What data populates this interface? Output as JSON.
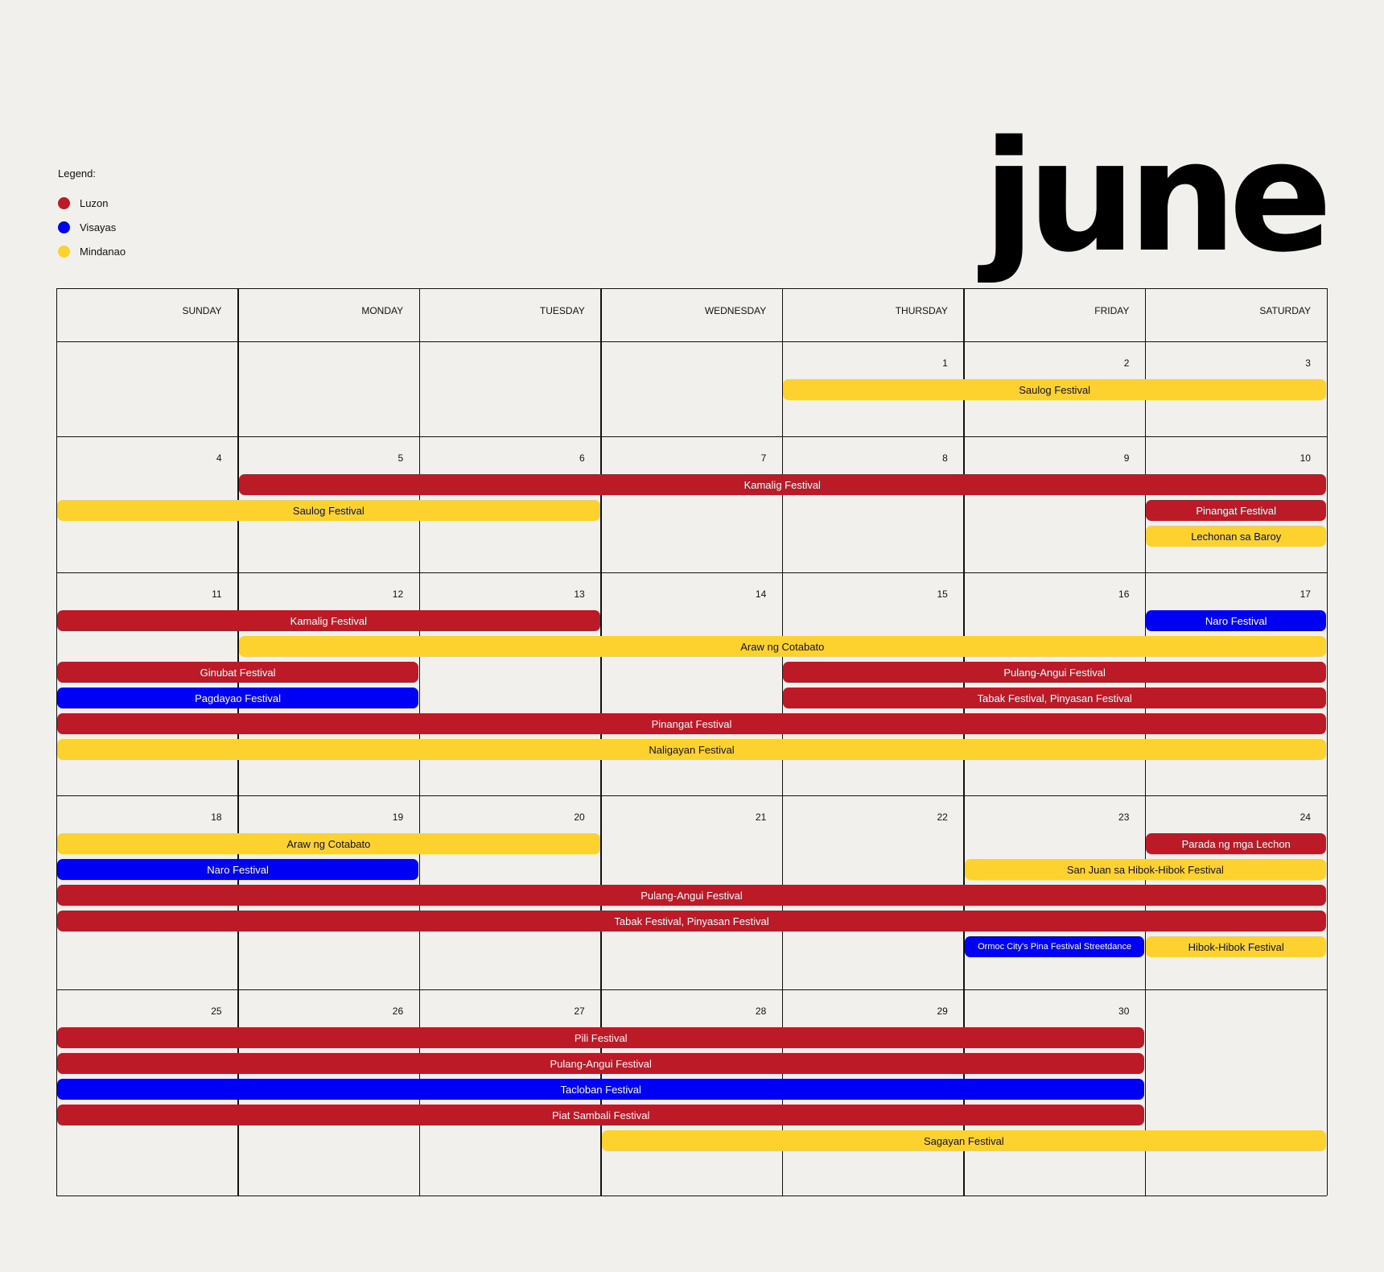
{
  "month": "june",
  "legend": {
    "title": "Legend:",
    "items": [
      {
        "key": "luzon",
        "label": "Luzon",
        "color": "#bc1a27"
      },
      {
        "key": "visayas",
        "label": "Visayas",
        "color": "#0000f5"
      },
      {
        "key": "mindanao",
        "label": "Mindanao",
        "color": "#fdd22e"
      }
    ]
  },
  "weekdays": [
    "SUNDAY",
    "MONDAY",
    "TUESDAY",
    "WEDNESDAY",
    "THURSDAY",
    "FRIDAY",
    "SATURDAY"
  ],
  "weeks": [
    {
      "days": [
        null,
        null,
        null,
        null,
        1,
        2,
        3
      ],
      "events": [
        {
          "label": "Saulog Festival",
          "region": "mindanao",
          "start": 4,
          "end": 6
        }
      ]
    },
    {
      "days": [
        4,
        5,
        6,
        7,
        8,
        9,
        10
      ],
      "events": [
        {
          "label": "Kamalig Festival",
          "region": "luzon",
          "start": 1,
          "end": 6
        },
        {
          "label": "Saulog Festival",
          "region": "mindanao",
          "start": 0,
          "end": 2
        },
        {
          "label": "Pinangat Festival",
          "region": "luzon",
          "start": 6,
          "end": 6
        },
        {
          "label": "Lechonan sa Baroy",
          "region": "mindanao",
          "start": 6,
          "end": 6
        }
      ]
    },
    {
      "days": [
        11,
        12,
        13,
        14,
        15,
        16,
        17
      ],
      "events": [
        {
          "label": "Kamalig Festival",
          "region": "luzon",
          "start": 0,
          "end": 2
        },
        {
          "label": "Naro Festival",
          "region": "visayas",
          "start": 6,
          "end": 6
        },
        {
          "label": "Araw ng Cotabato",
          "region": "mindanao",
          "start": 1,
          "end": 6
        },
        {
          "label": "Ginubat Festival",
          "region": "luzon",
          "start": 0,
          "end": 1
        },
        {
          "label": "Pulang-Angui Festival",
          "region": "luzon",
          "start": 4,
          "end": 6
        },
        {
          "label": "Pagdayao Festival",
          "region": "visayas",
          "start": 0,
          "end": 1
        },
        {
          "label": "Tabak Festival, Pinyasan Festival",
          "region": "luzon",
          "start": 4,
          "end": 6
        },
        {
          "label": "Pinangat Festival",
          "region": "luzon",
          "start": 0,
          "end": 6
        },
        {
          "label": "Naligayan Festival",
          "region": "mindanao",
          "start": 0,
          "end": 6
        }
      ]
    },
    {
      "days": [
        18,
        19,
        20,
        21,
        22,
        23,
        24
      ],
      "events": [
        {
          "label": "Araw ng Cotabato",
          "region": "mindanao",
          "start": 0,
          "end": 2
        },
        {
          "label": "Parada ng mga Lechon",
          "region": "luzon",
          "start": 6,
          "end": 6
        },
        {
          "label": "Naro Festival",
          "region": "visayas",
          "start": 0,
          "end": 1
        },
        {
          "label": "San Juan sa Hibok-Hibok Festival",
          "region": "mindanao",
          "start": 5,
          "end": 6
        },
        {
          "label": "Pulang-Angui Festival",
          "region": "luzon",
          "start": 0,
          "end": 6
        },
        {
          "label": "Tabak Festival, Pinyasan Festival",
          "region": "luzon",
          "start": 0,
          "end": 6
        },
        {
          "label": "Ormoc City's Pina Festival Streetdance",
          "region": "visayas",
          "start": 5,
          "end": 5
        },
        {
          "label": "Hibok-Hibok Festival",
          "region": "mindanao",
          "start": 6,
          "end": 6
        }
      ]
    },
    {
      "days": [
        25,
        26,
        27,
        28,
        29,
        30,
        null
      ],
      "events": [
        {
          "label": "Pili Festival",
          "region": "luzon",
          "start": 0,
          "end": 5
        },
        {
          "label": "Pulang-Angui Festival",
          "region": "luzon",
          "start": 0,
          "end": 5
        },
        {
          "label": "Tacloban Festival",
          "region": "visayas",
          "start": 0,
          "end": 5
        },
        {
          "label": "Piat Sambali Festival",
          "region": "luzon",
          "start": 0,
          "end": 5
        },
        {
          "label": "Sagayan Festival",
          "region": "mindanao",
          "start": 3,
          "end": 6
        }
      ]
    }
  ]
}
